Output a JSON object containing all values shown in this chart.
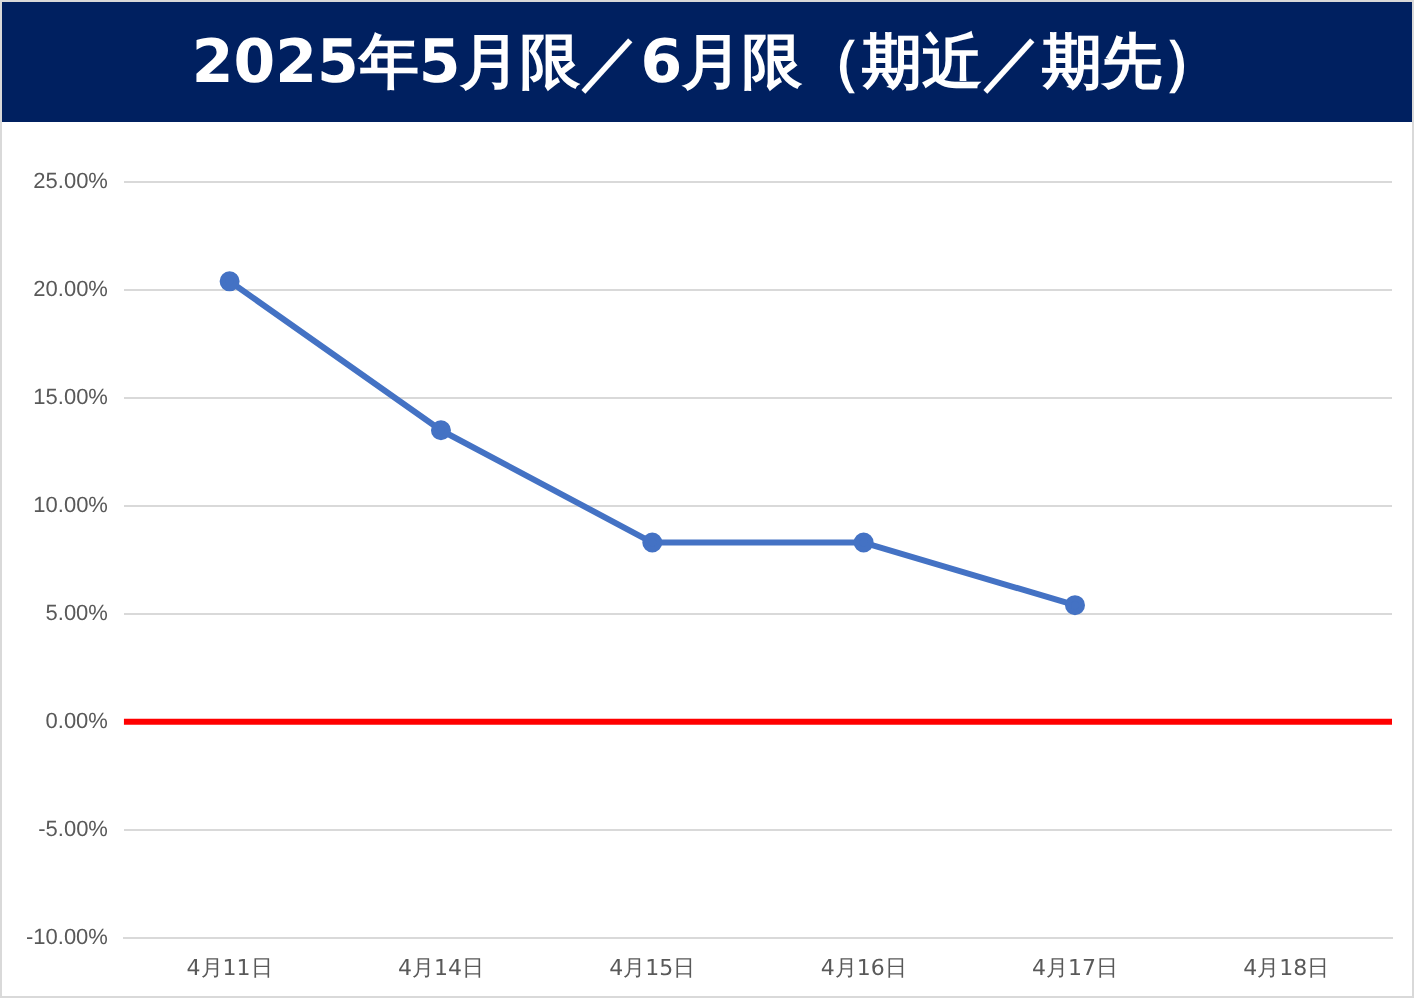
{
  "chart_data": {
    "type": "line",
    "title": "2025年5月限／6月限（期近／期先）",
    "categories": [
      "4月11日",
      "4月14日",
      "4月15日",
      "4月16日",
      "4月17日",
      "4月18日"
    ],
    "series": [
      {
        "color": "#4472c4",
        "values": [
          20.4,
          13.5,
          8.3,
          8.3,
          5.4,
          null
        ]
      }
    ],
    "ylim": [
      -10,
      25
    ],
    "yticks": [
      {
        "value": -10,
        "label": "-10.00%"
      },
      {
        "value": -5,
        "label": "-5.00%"
      },
      {
        "value": 0,
        "label": "0.00%"
      },
      {
        "value": 5,
        "label": "5.00%"
      },
      {
        "value": 10,
        "label": "10.00%"
      },
      {
        "value": 15,
        "label": "15.00%"
      },
      {
        "value": 20,
        "label": "20.00%"
      },
      {
        "value": 25,
        "label": "25.00%"
      }
    ],
    "ref_lines": [
      {
        "axis": "y",
        "value": 0,
        "color": "#ff0000"
      }
    ],
    "grid": "y",
    "legend": false,
    "marker": "circle",
    "line_style": "solid"
  }
}
